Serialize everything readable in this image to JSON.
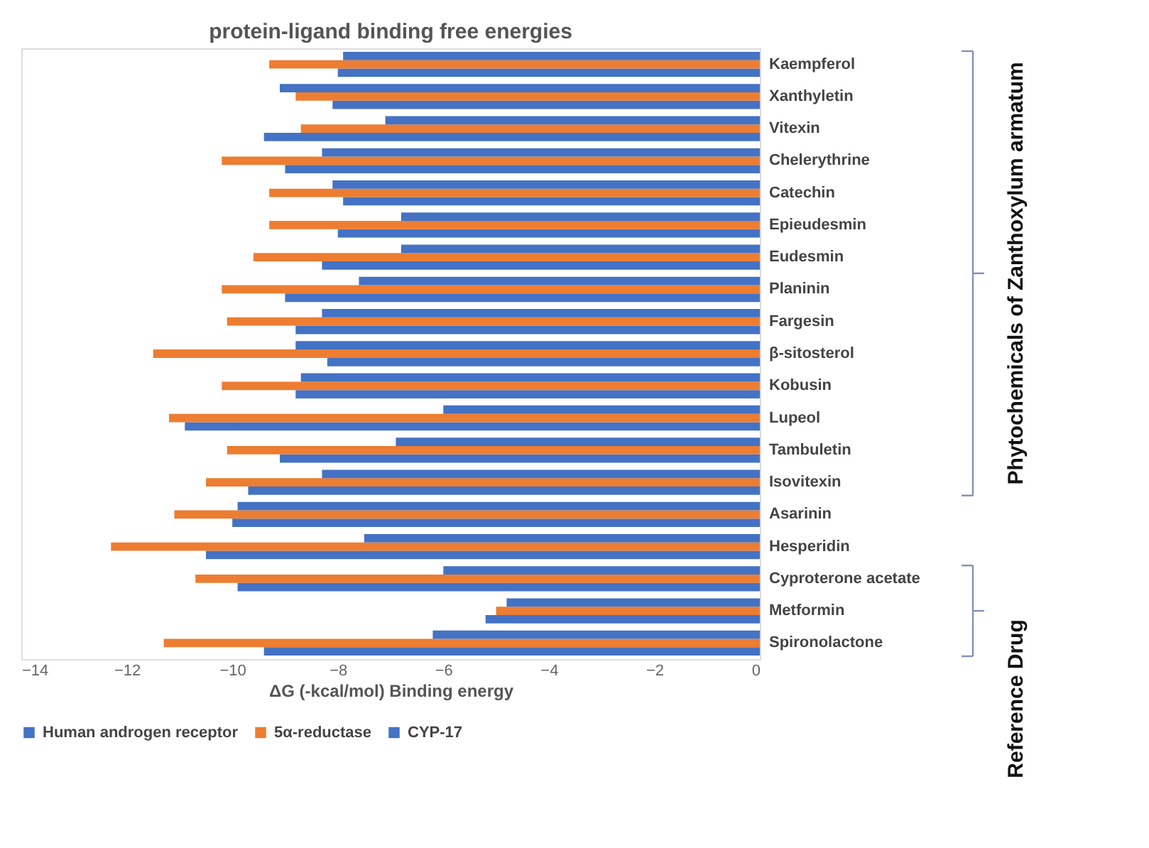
{
  "chart_data": {
    "type": "bar",
    "orientation": "horizontal",
    "title": "protein-ligand binding free energies",
    "xlabel": "ΔG (-kcal/mol) Binding energy",
    "categories": [
      "Kaempferol",
      "Xanthyletin",
      "Vitexin",
      "Chelerythrine",
      "Catechin",
      "Epieudesmin",
      "Eudesmin",
      "Planinin",
      "Fargesin",
      "β-sitosterol",
      "Kobusin",
      "Lupeol",
      "Tambuletin",
      "Isovitexin",
      "Asarinin",
      "Hesperidin",
      "Cyproterone acetate",
      "Metformin",
      "Spironolactone"
    ],
    "series": [
      {
        "name": "Human androgen receptor",
        "color": "#4472c4",
        "values": [
          -8.0,
          -8.1,
          -9.4,
          -9.0,
          -7.9,
          -8.0,
          -8.3,
          -9.0,
          -8.8,
          -8.2,
          -8.8,
          -10.9,
          -9.1,
          -9.7,
          -10.0,
          -10.5,
          -9.9,
          -5.2,
          -9.4
        ]
      },
      {
        "name": "5α-reductase",
        "color": "#ed7d31",
        "values": [
          -9.3,
          -8.8,
          -8.7,
          -10.2,
          -9.3,
          -9.3,
          -9.6,
          -10.2,
          -10.1,
          -11.5,
          -10.2,
          -11.2,
          -10.1,
          -10.5,
          -11.1,
          -12.3,
          -10.7,
          -5.0,
          -11.3
        ]
      },
      {
        "name": "CYP-17",
        "color": "#4472c4",
        "values": [
          -7.9,
          -9.1,
          -7.1,
          -8.3,
          -8.1,
          -6.8,
          -6.8,
          -7.6,
          -8.3,
          -8.8,
          -8.7,
          -6.0,
          -6.9,
          -8.3,
          -9.9,
          -7.5,
          -6.0,
          -4.8,
          -6.2
        ]
      }
    ],
    "xlim": [
      -14,
      0
    ],
    "xticks": [
      -14,
      -12,
      -10,
      -8,
      -6,
      -4,
      -2,
      0
    ],
    "grid": false,
    "legend": "bottom",
    "annotations": [
      "Phytochemicals of Zanthoxylum armatum",
      "Reference Drug"
    ]
  }
}
